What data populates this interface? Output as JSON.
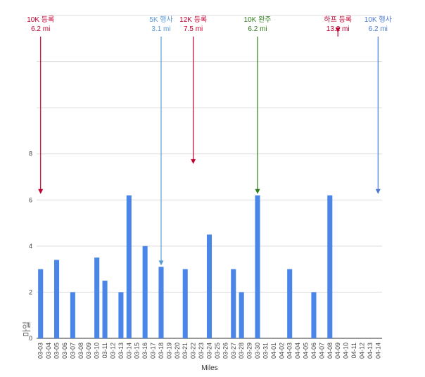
{
  "chart_data": {
    "type": "bar",
    "xlabel": "Miles",
    "ylabel": "마일",
    "ylim": [
      0,
      14
    ],
    "y_ticks": [
      0,
      2,
      4,
      6,
      8
    ],
    "grid": true,
    "bar_color": "#4a86e8",
    "categories": [
      "03-03",
      "03-04",
      "03-05",
      "03-06",
      "03-07",
      "03-08",
      "03-09",
      "03-10",
      "03-11",
      "03-12",
      "03-13",
      "03-14",
      "03-15",
      "03-16",
      "03-17",
      "03-18",
      "03-19",
      "03-20",
      "03-21",
      "03-22",
      "03-23",
      "03-24",
      "03-25",
      "03-26",
      "03-27",
      "03-28",
      "03-29",
      "03-30",
      "03-31",
      "04-01",
      "04-02",
      "04-03",
      "04-04",
      "04-05",
      "04-06",
      "04-07",
      "04-08",
      "04-09",
      "04-10",
      "04-11",
      "04-12",
      "04-13",
      "04-14"
    ],
    "values": [
      3,
      0,
      3.4,
      0,
      2,
      0,
      0,
      3.5,
      2.5,
      0,
      2,
      6.2,
      0,
      4,
      0,
      3.1,
      0,
      0,
      3,
      0,
      0,
      4.5,
      0,
      0,
      3,
      2,
      0,
      6.2,
      0,
      0,
      0,
      3,
      0,
      0,
      2,
      0,
      6.2,
      0,
      0,
      0,
      0,
      0,
      0
    ],
    "annotations": [
      {
        "category": "03-03",
        "line1": "10K 등록",
        "line2": "6.2 mi",
        "value": 6.2,
        "color": "#c2002f"
      },
      {
        "category": "03-18",
        "line1": "5K 행사",
        "line2": "3.1 mi",
        "value": 3.1,
        "color": "#5b9bd5"
      },
      {
        "category": "03-22",
        "line1": "12K 등록",
        "line2": "7.5 mi",
        "value": 7.5,
        "color": "#c2002f"
      },
      {
        "category": "03-30",
        "line1": "10K 완주",
        "line2": "6.2 mi",
        "value": 6.2,
        "color": "#2e7d1a"
      },
      {
        "category": "04-09",
        "line1": "하프 등록",
        "line2": "13.2 mi",
        "value": 13.2,
        "color": "#c2002f"
      },
      {
        "category": "04-14",
        "line1": "10K 행사",
        "line2": "6.2 mi",
        "value": 6.2,
        "color": "#4a7bd0"
      }
    ]
  }
}
